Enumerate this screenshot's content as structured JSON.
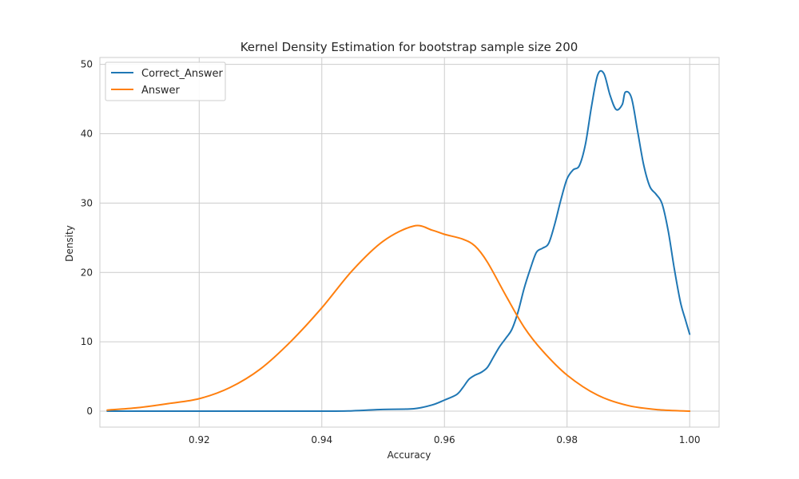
{
  "chart_data": {
    "type": "line",
    "title": "Kernel Density Estimation for bootstrap sample size 200",
    "xlabel": "Accuracy",
    "ylabel": "Density",
    "xlim": [
      0.9038,
      1.0048
    ],
    "ylim": [
      -2.3,
      51.0
    ],
    "xticks": [
      0.92,
      0.94,
      0.96,
      0.98,
      1.0
    ],
    "xtick_labels": [
      "0.92",
      "0.94",
      "0.96",
      "0.98",
      "1.00"
    ],
    "yticks": [
      0,
      10,
      20,
      30,
      40,
      50
    ],
    "ytick_labels": [
      "0",
      "10",
      "20",
      "30",
      "40",
      "50"
    ],
    "grid": true,
    "legend_position": "top-left",
    "series": [
      {
        "name": "Correct_Answer",
        "color": "#1f77b4",
        "x": [
          0.905,
          0.92,
          0.94,
          0.945,
          0.95,
          0.955,
          0.958,
          0.96,
          0.962,
          0.963,
          0.964,
          0.965,
          0.966,
          0.967,
          0.968,
          0.969,
          0.97,
          0.971,
          0.972,
          0.973,
          0.974,
          0.975,
          0.976,
          0.977,
          0.978,
          0.979,
          0.98,
          0.981,
          0.982,
          0.983,
          0.984,
          0.985,
          0.986,
          0.987,
          0.988,
          0.989,
          0.9895,
          0.9905,
          0.9915,
          0.9925,
          0.9935,
          0.9945,
          0.9955,
          0.9965,
          0.9975,
          0.9985,
          0.9993,
          1.0
        ],
        "y": [
          0,
          0,
          0,
          0.05,
          0.25,
          0.35,
          0.9,
          1.6,
          2.4,
          3.4,
          4.6,
          5.2,
          5.6,
          6.3,
          7.8,
          9.3,
          10.5,
          11.8,
          14.3,
          17.7,
          20.5,
          22.9,
          23.5,
          24.2,
          27.0,
          30.5,
          33.5,
          34.8,
          35.4,
          38.5,
          44.0,
          48.5,
          48.7,
          45.6,
          43.5,
          44.2,
          46.0,
          45.2,
          40.4,
          35.5,
          32.4,
          31.3,
          29.9,
          26.0,
          20.5,
          15.7,
          13.2,
          11.1
        ]
      },
      {
        "name": "Answer",
        "color": "#ff7f0e",
        "x": [
          0.905,
          0.91,
          0.915,
          0.92,
          0.925,
          0.93,
          0.935,
          0.94,
          0.945,
          0.95,
          0.955,
          0.958,
          0.96,
          0.963,
          0.965,
          0.967,
          0.97,
          0.973,
          0.976,
          0.98,
          0.985,
          0.99,
          0.995,
          1.0
        ],
        "y": [
          0.15,
          0.5,
          1.1,
          1.8,
          3.4,
          6.1,
          10.1,
          14.9,
          20.3,
          24.5,
          26.7,
          26.1,
          25.5,
          24.8,
          23.8,
          21.5,
          16.7,
          12.1,
          8.7,
          5.2,
          2.3,
          0.8,
          0.2,
          0.0
        ]
      }
    ]
  }
}
